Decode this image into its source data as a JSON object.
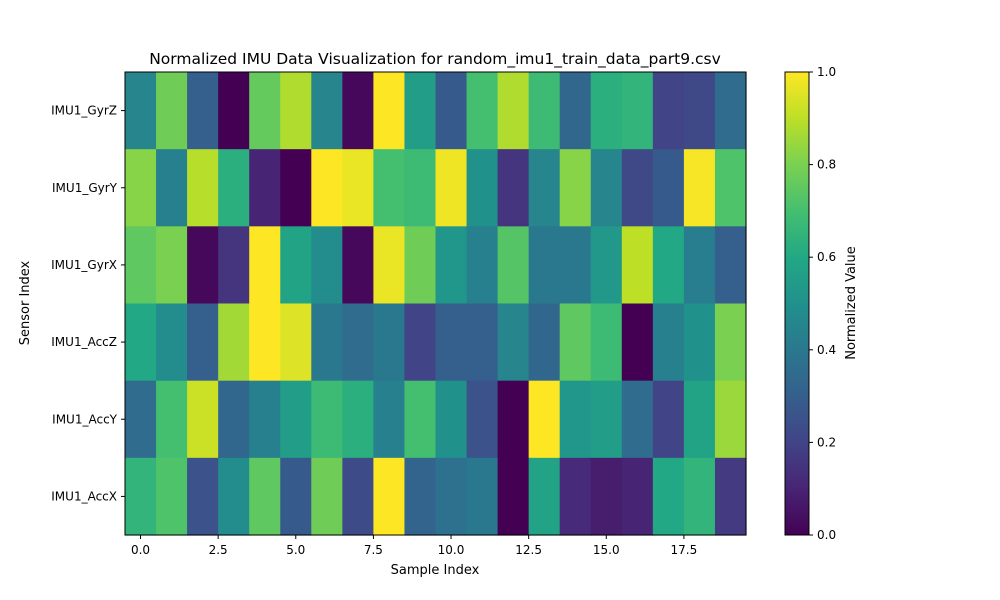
{
  "chart_data": {
    "type": "heatmap",
    "title": "Normalized IMU Data Visualization for random_imu1_train_data_part9.csv",
    "xlabel": "Sample Index",
    "ylabel": "Sensor Index",
    "rows": [
      "IMU1_GyrZ",
      "IMU1_GyrY",
      "IMU1_GyrX",
      "IMU1_AccZ",
      "IMU1_AccY",
      "IMU1_AccX"
    ],
    "x_ticks": [
      "0.0",
      "2.5",
      "5.0",
      "7.5",
      "10.0",
      "12.5",
      "15.0",
      "17.5"
    ],
    "x_tick_values": [
      0,
      2.5,
      5,
      7.5,
      10,
      12.5,
      15,
      17.5
    ],
    "xlim": [
      -0.5,
      19.5
    ],
    "columns": 20,
    "colorbar": {
      "label": "Normalized Value",
      "ticks": [
        "0.0",
        "0.2",
        "0.4",
        "0.6",
        "0.8",
        "1.0"
      ],
      "tick_values": [
        0,
        0.2,
        0.4,
        0.6,
        0.8,
        1.0
      ],
      "range": [
        0,
        1
      ],
      "colormap": "viridis"
    },
    "values": [
      [
        0.45,
        0.78,
        0.3,
        0.0,
        0.76,
        0.88,
        0.45,
        0.02,
        1.0,
        0.55,
        0.28,
        0.7,
        0.88,
        0.68,
        0.33,
        0.63,
        0.65,
        0.2,
        0.22,
        0.35
      ],
      [
        0.82,
        0.43,
        0.89,
        0.63,
        0.1,
        0.0,
        1.0,
        0.97,
        0.7,
        0.68,
        0.98,
        0.5,
        0.15,
        0.45,
        0.82,
        0.45,
        0.22,
        0.28,
        0.99,
        0.72
      ],
      [
        0.75,
        0.8,
        0.02,
        0.15,
        1.0,
        0.58,
        0.48,
        0.02,
        0.97,
        0.78,
        0.52,
        0.43,
        0.73,
        0.4,
        0.4,
        0.53,
        0.9,
        0.6,
        0.42,
        0.3
      ],
      [
        0.6,
        0.48,
        0.3,
        0.86,
        1.0,
        0.95,
        0.4,
        0.35,
        0.4,
        0.2,
        0.3,
        0.3,
        0.45,
        0.33,
        0.75,
        0.68,
        0.0,
        0.43,
        0.5,
        0.8
      ],
      [
        0.35,
        0.7,
        0.92,
        0.33,
        0.43,
        0.55,
        0.68,
        0.63,
        0.43,
        0.7,
        0.5,
        0.25,
        0.0,
        1.0,
        0.52,
        0.55,
        0.35,
        0.2,
        0.58,
        0.85
      ],
      [
        0.65,
        0.72,
        0.25,
        0.48,
        0.75,
        0.28,
        0.78,
        0.23,
        1.0,
        0.32,
        0.37,
        0.4,
        0.0,
        0.58,
        0.12,
        0.08,
        0.1,
        0.6,
        0.65,
        0.17
      ]
    ]
  }
}
